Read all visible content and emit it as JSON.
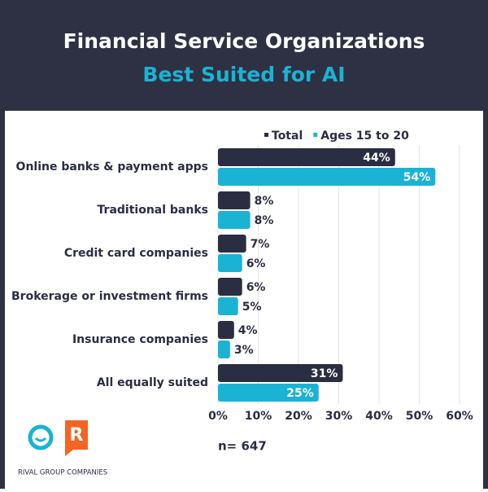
{
  "chart_data": {
    "type": "bar",
    "orientation": "horizontal",
    "title": "Financial Service Organizations",
    "subtitle": "Best Suited for AI",
    "categories": [
      "Online banks & payment apps",
      "Traditional banks",
      "Credit card companies",
      "Brokerage or investment firms",
      "Insurance companies",
      "All equally suited"
    ],
    "series": [
      {
        "name": "Total",
        "color": "#2b2d42",
        "values": [
          44,
          8,
          7,
          6,
          4,
          31
        ],
        "value_labels": [
          "44%",
          "8%",
          "7%",
          "6%",
          "4%",
          "31%"
        ]
      },
      {
        "name": "Ages 15 to 20",
        "color": "#1bb3d3",
        "values": [
          54,
          8,
          6,
          5,
          3,
          25
        ],
        "value_labels": [
          "54%",
          "8%",
          "6%",
          "5%",
          "3%",
          "25%"
        ]
      }
    ],
    "xlim": [
      0,
      60
    ],
    "xticks": [
      {
        "value": 0,
        "label": "0%"
      },
      {
        "value": 10,
        "label": "10%"
      },
      {
        "value": 20,
        "label": "20%"
      },
      {
        "value": 30,
        "label": "30%"
      },
      {
        "value": 40,
        "label": "40%"
      },
      {
        "value": 50,
        "label": "50%"
      },
      {
        "value": 60,
        "label": "60%"
      }
    ],
    "grid": true,
    "legend": "top",
    "annotation": "n= 647",
    "brand_letter": "R",
    "brand": "RIVAL GROUP COMPANIES"
  }
}
